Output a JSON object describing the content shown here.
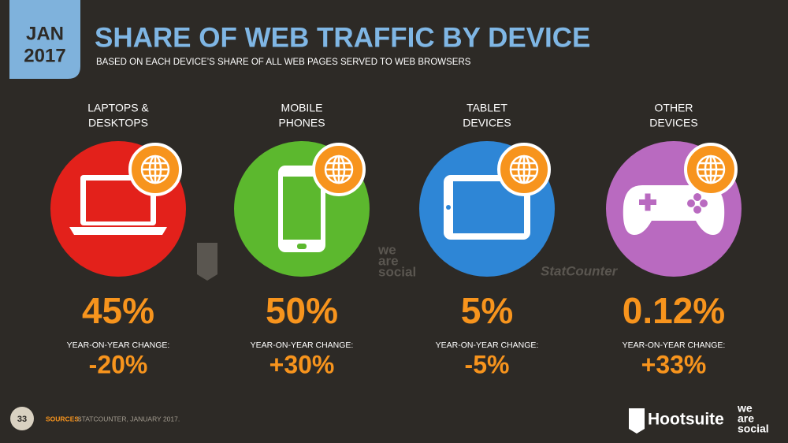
{
  "header": {
    "month": "JAN",
    "year": "2017",
    "title": "SHARE OF WEB TRAFFIC BY DEVICE",
    "subtitle": "BASED ON EACH DEVICE’S SHARE OF ALL WEB PAGES SERVED TO WEB BROWSERS"
  },
  "devices": [
    {
      "label": [
        "LAPTOPS &",
        "DESKTOPS"
      ],
      "share": "45%",
      "change_label": "YEAR-ON-YEAR CHANGE:",
      "change": "-20%"
    },
    {
      "label": [
        "MOBILE",
        "PHONES"
      ],
      "share": "50%",
      "change_label": "YEAR-ON-YEAR CHANGE:",
      "change": "+30%"
    },
    {
      "label": [
        "TABLET",
        "DEVICES"
      ],
      "share": "5%",
      "change_label": "YEAR-ON-YEAR CHANGE:",
      "change": "-5%"
    },
    {
      "label": [
        "OTHER",
        "DEVICES"
      ],
      "share": "0.12%",
      "change_label": "YEAR-ON-YEAR CHANGE:",
      "change": "+33%"
    }
  ],
  "watermarks": {
    "we_are_social": [
      "we",
      "are",
      "social"
    ],
    "statcounter": "StatCounter"
  },
  "footer": {
    "page": "33",
    "sources_label": "SOURCES:",
    "sources": "STATCOUNTER, JANUARY 2017.",
    "hootsuite": "Hootsuite",
    "we_are_social": [
      "we",
      "are",
      "social"
    ]
  }
}
